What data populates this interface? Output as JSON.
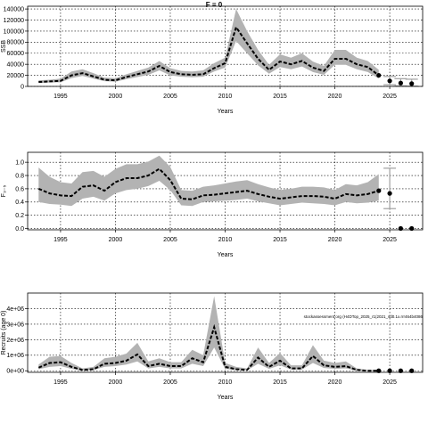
{
  "figure_title": "F = 0",
  "note": "stockassessment.org (H4DTop_2025_r1(2021_sd0.1x.rrr464b4086",
  "chart_data": [
    {
      "type": "line",
      "title": "F = 0",
      "xlabel": "Years",
      "ylabel": "SSB",
      "xlim": [
        1992,
        2028
      ],
      "ylim": [
        0,
        145000
      ],
      "xticks": [
        1995,
        2000,
        2005,
        2010,
        2015,
        2020,
        2025
      ],
      "yticks": [
        0,
        20000,
        40000,
        60000,
        80000,
        100000,
        120000,
        140000
      ],
      "ytick_labels": [
        "0",
        "20000",
        "40000",
        "60000",
        "80000",
        "100000",
        "120000",
        "140000"
      ],
      "grid": true,
      "historical": {
        "x": [
          1993,
          1994,
          1995,
          1996,
          1997,
          1998,
          1999,
          2000,
          2001,
          2002,
          2003,
          2004,
          2005,
          2006,
          2007,
          2008,
          2009,
          2010,
          2011,
          2012,
          2013,
          2014,
          2015,
          2016,
          2017,
          2018,
          2019,
          2020,
          2021,
          2022,
          2023,
          2024
        ],
        "estimate": [
          8000,
          9000,
          10000,
          20000,
          24000,
          18000,
          12000,
          11000,
          17000,
          22000,
          27000,
          37000,
          26000,
          22000,
          21000,
          22000,
          33000,
          42000,
          107000,
          78000,
          50000,
          30000,
          45000,
          40000,
          46000,
          34000,
          28000,
          50000,
          50000,
          40000,
          35000,
          20000
        ],
        "lower": [
          6000,
          7000,
          7500,
          15000,
          19000,
          14000,
          9500,
          8500,
          13000,
          17000,
          21000,
          29000,
          20000,
          17500,
          16500,
          17500,
          27000,
          34000,
          82000,
          60000,
          38000,
          23000,
          35000,
          31000,
          36000,
          26000,
          21000,
          39000,
          39000,
          31000,
          26000,
          14000
        ],
        "upper": [
          11000,
          12000,
          14000,
          27000,
          31000,
          24000,
          16000,
          15000,
          22000,
          28000,
          34000,
          46000,
          33000,
          28000,
          27000,
          29000,
          42000,
          52000,
          140000,
          100000,
          66000,
          39000,
          58000,
          52000,
          60000,
          45000,
          37000,
          66000,
          66000,
          52000,
          46000,
          30000
        ]
      },
      "forecast": {
        "x": [
          2025,
          2026,
          2027
        ],
        "values": [
          10000,
          6000,
          5000
        ],
        "lower": [
          3000,
          1000,
          500
        ],
        "upper": [
          18000,
          14000,
          13000
        ]
      }
    },
    {
      "type": "line",
      "title": "",
      "xlabel": "Years",
      "ylabel": "F₃₋₅",
      "xlim": [
        1992,
        2028
      ],
      "ylim": [
        -0.02,
        1.15
      ],
      "xticks": [
        1995,
        2000,
        2005,
        2010,
        2015,
        2020,
        2025
      ],
      "yticks": [
        0,
        0.2,
        0.4,
        0.6,
        0.8,
        1.0
      ],
      "ytick_labels": [
        "0.0",
        "0.2",
        "0.4",
        "0.6",
        "0.8",
        "1.0"
      ],
      "grid": true,
      "historical": {
        "x": [
          1993,
          1994,
          1995,
          1996,
          1997,
          1998,
          1999,
          2000,
          2001,
          2002,
          2003,
          2004,
          2005,
          2006,
          2007,
          2008,
          2009,
          2010,
          2011,
          2012,
          2013,
          2014,
          2015,
          2016,
          2017,
          2018,
          2019,
          2020,
          2021,
          2022,
          2023,
          2024
        ],
        "estimate": [
          0.6,
          0.53,
          0.5,
          0.49,
          0.63,
          0.65,
          0.57,
          0.7,
          0.76,
          0.76,
          0.8,
          0.9,
          0.73,
          0.45,
          0.44,
          0.5,
          0.51,
          0.53,
          0.55,
          0.57,
          0.52,
          0.48,
          0.45,
          0.47,
          0.49,
          0.49,
          0.48,
          0.45,
          0.52,
          0.5,
          0.52,
          0.57
        ],
        "lower": [
          0.4,
          0.37,
          0.36,
          0.34,
          0.45,
          0.48,
          0.42,
          0.53,
          0.58,
          0.6,
          0.64,
          0.72,
          0.58,
          0.35,
          0.34,
          0.4,
          0.41,
          0.42,
          0.43,
          0.45,
          0.41,
          0.38,
          0.35,
          0.37,
          0.39,
          0.38,
          0.37,
          0.35,
          0.4,
          0.38,
          0.39,
          0.42
        ],
        "upper": [
          0.92,
          0.78,
          0.7,
          0.68,
          0.85,
          0.87,
          0.78,
          0.9,
          0.97,
          0.97,
          1.01,
          1.1,
          0.93,
          0.58,
          0.57,
          0.63,
          0.65,
          0.68,
          0.71,
          0.73,
          0.67,
          0.62,
          0.58,
          0.6,
          0.63,
          0.63,
          0.62,
          0.58,
          0.67,
          0.65,
          0.7,
          0.82
        ]
      },
      "forecast": {
        "x": [
          2025,
          2026,
          2027
        ],
        "values": [
          0.53,
          0,
          0
        ],
        "lower": [
          0.3,
          0,
          0
        ],
        "upper": [
          0.91,
          0,
          0
        ]
      }
    },
    {
      "type": "line",
      "title": "",
      "xlabel": "Years",
      "ylabel": "Recruits (age 0)",
      "xlim": [
        1992,
        2028
      ],
      "ylim": [
        -100000,
        5000000
      ],
      "xticks": [
        1995,
        2000,
        2005,
        2010,
        2015,
        2020,
        2025
      ],
      "yticks": [
        0,
        1000000,
        2000000,
        3000000,
        4000000
      ],
      "ytick_labels": [
        "0e+00",
        "1e+06",
        "2e+06",
        "3e+06",
        "4e+06"
      ],
      "grid": true,
      "historical": {
        "x": [
          1993,
          1994,
          1995,
          1996,
          1997,
          1998,
          1999,
          2000,
          2001,
          2002,
          2003,
          2004,
          2005,
          2006,
          2007,
          2008,
          2009,
          2010,
          2011,
          2012,
          2013,
          2014,
          2015,
          2016,
          2017,
          2018,
          2019,
          2020,
          2021,
          2022,
          2023,
          2024
        ],
        "estimate": [
          200000,
          500000,
          550000,
          250000,
          50000,
          100000,
          450000,
          500000,
          650000,
          1050000,
          300000,
          450000,
          300000,
          300000,
          800000,
          550000,
          2800000,
          250000,
          100000,
          50000,
          850000,
          250000,
          650000,
          150000,
          150000,
          950000,
          350000,
          250000,
          300000,
          50000,
          0,
          0
        ],
        "lower": [
          100000,
          250000,
          300000,
          120000,
          20000,
          50000,
          250000,
          300000,
          400000,
          600000,
          150000,
          250000,
          150000,
          150000,
          450000,
          300000,
          1500000,
          120000,
          50000,
          20000,
          450000,
          120000,
          350000,
          80000,
          80000,
          500000,
          180000,
          120000,
          150000,
          20000,
          0,
          0
        ],
        "upper": [
          400000,
          900000,
          950000,
          500000,
          150000,
          250000,
          800000,
          900000,
          1100000,
          1800000,
          600000,
          800000,
          550000,
          550000,
          1350000,
          1000000,
          4800000,
          500000,
          250000,
          150000,
          1500000,
          500000,
          1150000,
          350000,
          350000,
          1650000,
          650000,
          500000,
          600000,
          150000,
          50000,
          50000
        ]
      },
      "forecast": {
        "x": [
          2025,
          2026,
          2027
        ],
        "values": [
          0,
          0,
          0
        ],
        "lower": [
          0,
          0,
          0
        ],
        "upper": [
          0,
          0,
          0
        ]
      }
    }
  ]
}
